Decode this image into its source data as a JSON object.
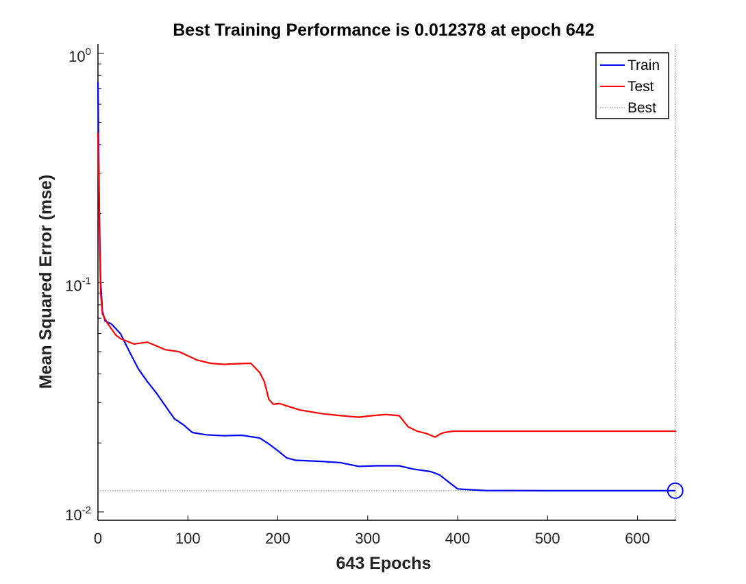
{
  "chart_data": {
    "type": "line",
    "title": "Best Training Performance is 0.012378 at epoch 642",
    "xlabel": "643 Epochs",
    "ylabel": "Mean Squared Error  (mse)",
    "yscale": "log",
    "xlim": [
      0,
      643
    ],
    "ylim": [
      0.0092,
      1.1
    ],
    "xticks": [
      0,
      100,
      200,
      300,
      400,
      500,
      600
    ],
    "yticks": [
      {
        "value": 1,
        "base": "10",
        "exp": "0"
      },
      {
        "value": 0.1,
        "base": "10",
        "exp": "-1"
      },
      {
        "value": 0.01,
        "base": "10",
        "exp": "-2"
      }
    ],
    "grid": false,
    "legend_position": "top-right",
    "series": [
      {
        "name": "Train",
        "color": "#0000ff",
        "points": [
          [
            0,
            0.75
          ],
          [
            1,
            0.3
          ],
          [
            2,
            0.16
          ],
          [
            3,
            0.1
          ],
          [
            5,
            0.075
          ],
          [
            8,
            0.068
          ],
          [
            15,
            0.066
          ],
          [
            25,
            0.06
          ],
          [
            35,
            0.05
          ],
          [
            45,
            0.042
          ],
          [
            55,
            0.037
          ],
          [
            65,
            0.033
          ],
          [
            75,
            0.029
          ],
          [
            85,
            0.0255
          ],
          [
            95,
            0.024
          ],
          [
            105,
            0.0222
          ],
          [
            120,
            0.0217
          ],
          [
            140,
            0.0215
          ],
          [
            160,
            0.0216
          ],
          [
            180,
            0.021
          ],
          [
            190,
            0.0198
          ],
          [
            200,
            0.0185
          ],
          [
            210,
            0.0172
          ],
          [
            220,
            0.0168
          ],
          [
            250,
            0.0166
          ],
          [
            270,
            0.0164
          ],
          [
            290,
            0.0158
          ],
          [
            310,
            0.0159
          ],
          [
            335,
            0.0159
          ],
          [
            350,
            0.0154
          ],
          [
            370,
            0.015
          ],
          [
            380,
            0.0145
          ],
          [
            390,
            0.0135
          ],
          [
            400,
            0.0126
          ],
          [
            430,
            0.0124
          ],
          [
            500,
            0.01238
          ],
          [
            642,
            0.012378
          ]
        ]
      },
      {
        "name": "Test",
        "color": "#ff0000",
        "points": [
          [
            0,
            0.45
          ],
          [
            1,
            0.25
          ],
          [
            2,
            0.14
          ],
          [
            3,
            0.09
          ],
          [
            5,
            0.073
          ],
          [
            10,
            0.067
          ],
          [
            20,
            0.059
          ],
          [
            25,
            0.057
          ],
          [
            30,
            0.056
          ],
          [
            40,
            0.054
          ],
          [
            55,
            0.055
          ],
          [
            65,
            0.053
          ],
          [
            75,
            0.051
          ],
          [
            90,
            0.05
          ],
          [
            95,
            0.049
          ],
          [
            110,
            0.046
          ],
          [
            125,
            0.0445
          ],
          [
            140,
            0.044
          ],
          [
            155,
            0.0443
          ],
          [
            170,
            0.0445
          ],
          [
            180,
            0.0405
          ],
          [
            185,
            0.037
          ],
          [
            190,
            0.031
          ],
          [
            195,
            0.0295
          ],
          [
            202,
            0.0297
          ],
          [
            210,
            0.029
          ],
          [
            225,
            0.0278
          ],
          [
            250,
            0.0268
          ],
          [
            270,
            0.0263
          ],
          [
            290,
            0.0259
          ],
          [
            305,
            0.0263
          ],
          [
            320,
            0.0266
          ],
          [
            335,
            0.0263
          ],
          [
            345,
            0.0235
          ],
          [
            355,
            0.0225
          ],
          [
            365,
            0.022
          ],
          [
            375,
            0.0212
          ],
          [
            380,
            0.0218
          ],
          [
            385,
            0.0222
          ],
          [
            395,
            0.0225
          ],
          [
            643,
            0.0225
          ]
        ]
      },
      {
        "name": "Best",
        "color": "#666666",
        "style": "dotted",
        "note_value": 0.012378,
        "best_epoch": 642
      }
    ],
    "marker": {
      "x": 642,
      "y": 0.012378,
      "shape": "circle",
      "color": "#0000ff"
    }
  }
}
